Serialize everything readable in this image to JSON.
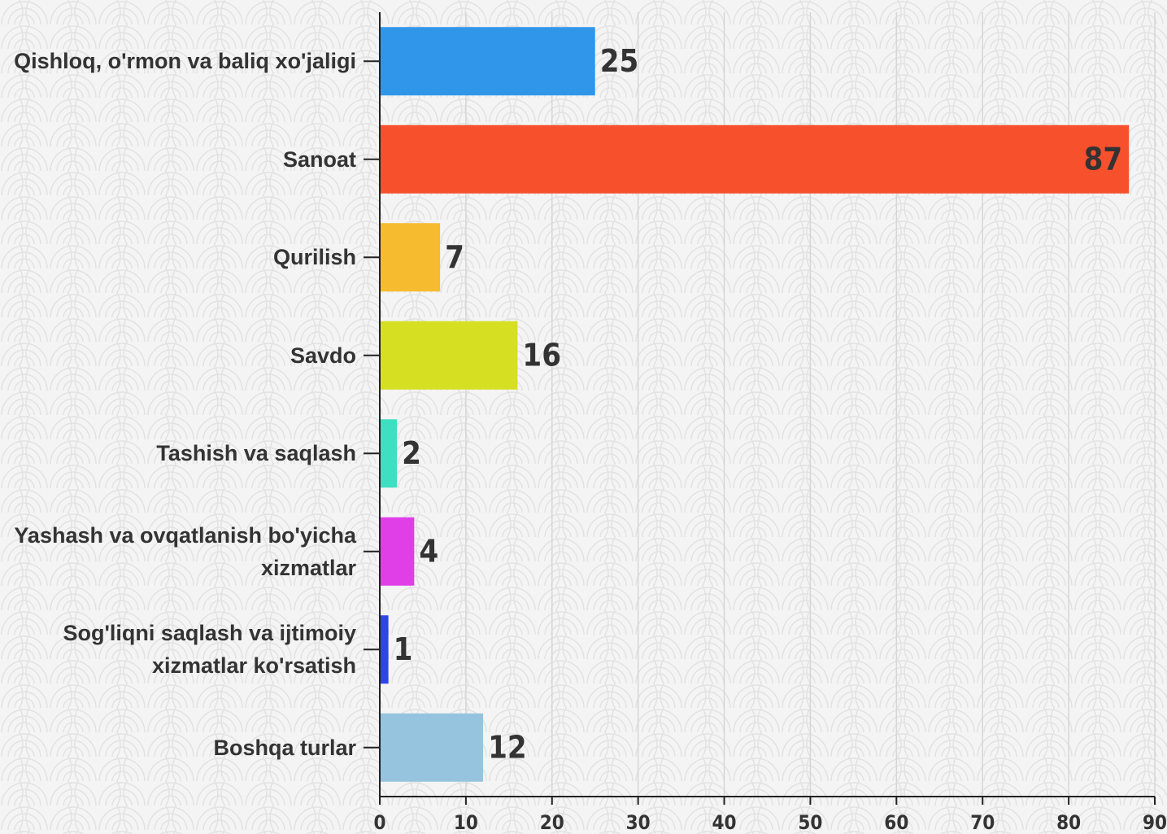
{
  "chart_data": {
    "type": "bar",
    "orientation": "horizontal",
    "categories": [
      "Qishloq, o'rmon va baliq xo'jaligi",
      "Sanoat",
      "Qurilish",
      "Savdo",
      "Tashish va saqlash",
      "Yashash va ovqatlanish bo'yicha xizmatlar",
      "Sog'liqni saqlash va ijtimoiy xizmatlar ko'rsatish",
      "Boshqa turlar"
    ],
    "values": [
      25,
      87,
      7,
      16,
      2,
      4,
      1,
      12
    ],
    "colors": [
      "#3096ea",
      "#f6502d",
      "#f6bb2e",
      "#d7df23",
      "#3ee0c1",
      "#e03fe8",
      "#2f46e6",
      "#96c4de"
    ],
    "xlim": [
      0,
      90
    ],
    "xticks": [
      0,
      10,
      20,
      30,
      40,
      50,
      60,
      70,
      80,
      90
    ],
    "grid": true
  }
}
